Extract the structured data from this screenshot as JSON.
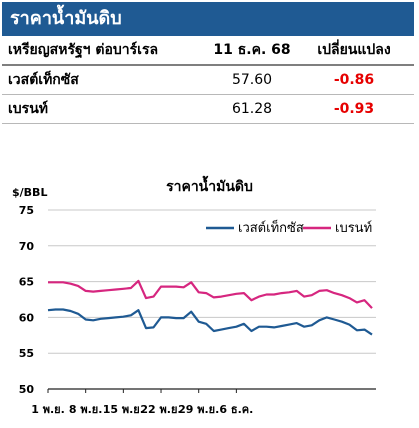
{
  "header": {
    "title": "ราคาน้ำมันดิบ"
  },
  "table": {
    "columns": [
      "เหรียญสหรัฐฯ ต่อบาร์เรล",
      "11 ธ.ค. 68",
      "เปลี่ยนแปลง"
    ],
    "rows": [
      {
        "name": "เวสต์เท็กซัส",
        "price": "57.60",
        "change": "-0.86"
      },
      {
        "name": "เบรนท์",
        "price": "61.28",
        "change": "-0.93"
      }
    ]
  },
  "chart_data": {
    "type": "line",
    "title": "ราคาน้ำมันดิบ",
    "ylabel": "$/BBL",
    "xlabel": "",
    "ylim": [
      50,
      75
    ],
    "yticks": [
      50,
      55,
      60,
      65,
      70,
      75
    ],
    "xtick_labels": [
      {
        "i": 0,
        "label": "1 พ.ย."
      },
      {
        "i": 5,
        "label": "8 พ.ย."
      },
      {
        "i": 10,
        "label": "15 พ.ย."
      },
      {
        "i": 15,
        "label": "22 พ.ย."
      },
      {
        "i": 20,
        "label": "29 พ.ย."
      },
      {
        "i": 25,
        "label": "6 ธ.ค."
      }
    ],
    "grid": true,
    "legend_position": "top-right",
    "series": [
      {
        "name": "เวสต์เท็กซัส",
        "color": "#1f5a93",
        "values": [
          61.0,
          61.1,
          61.1,
          60.9,
          60.5,
          59.7,
          59.6,
          59.8,
          59.9,
          60.0,
          60.1,
          60.3,
          61.0,
          58.5,
          58.6,
          60.0,
          60.0,
          59.9,
          59.9,
          60.8,
          59.4,
          59.1,
          58.1,
          58.3,
          58.5,
          58.7,
          59.1,
          58.1,
          58.7,
          58.7,
          58.6,
          58.8,
          59.0,
          59.2,
          58.7,
          58.9,
          59.6,
          60.0,
          59.7,
          59.4,
          59.0,
          58.2,
          58.3,
          57.6
        ]
      },
      {
        "name": "เบรนท์",
        "color": "#d6267f",
        "values": [
          64.9,
          64.9,
          64.9,
          64.7,
          64.4,
          63.7,
          63.6,
          63.7,
          63.8,
          63.9,
          64.0,
          64.1,
          65.1,
          62.7,
          62.9,
          64.3,
          64.3,
          64.3,
          64.2,
          64.9,
          63.5,
          63.4,
          62.8,
          62.9,
          63.1,
          63.3,
          63.4,
          62.4,
          62.9,
          63.2,
          63.2,
          63.4,
          63.5,
          63.7,
          62.9,
          63.1,
          63.7,
          63.8,
          63.4,
          63.1,
          62.7,
          62.1,
          62.4,
          61.3
        ]
      }
    ]
  }
}
